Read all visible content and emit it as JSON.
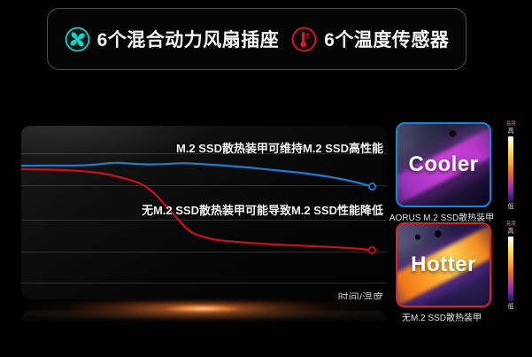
{
  "banner": {
    "items": [
      {
        "icon": "fan-icon",
        "label": "6个混合动力风扇插座",
        "accent": "#17d1c6"
      },
      {
        "icon": "thermometer-icon",
        "label": "6个温度传感器",
        "accent": "#d41e28"
      }
    ]
  },
  "chart_data": {
    "type": "line",
    "title": "",
    "xlabel": "时间/温度",
    "ylabel": "",
    "x_range": [
      0,
      100
    ],
    "y_range": [
      0,
      100
    ],
    "grid": "horizontal-only",
    "legend_position": "inline-annotations",
    "series": [
      {
        "name": "M.2 SSD散热装甲可维持M.2 SSD高性能",
        "color": "#1b7cd0",
        "points": [
          [
            0,
            77
          ],
          [
            8,
            77.2
          ],
          [
            14,
            77
          ],
          [
            20,
            77.5
          ],
          [
            26,
            79
          ],
          [
            31,
            78
          ],
          [
            37,
            77.6
          ],
          [
            44,
            78.6
          ],
          [
            49,
            78
          ],
          [
            55,
            77.2
          ],
          [
            62,
            76
          ],
          [
            70,
            74.3
          ],
          [
            78,
            72.6
          ],
          [
            85,
            70.4
          ],
          [
            91,
            67.9
          ],
          [
            96,
            65
          ]
        ]
      },
      {
        "name": "无M.2 SSD散热装甲可能导致M.2 SSD性能降低",
        "color": "#c8101e",
        "points": [
          [
            0,
            75
          ],
          [
            9,
            74.8
          ],
          [
            17,
            74
          ],
          [
            23,
            72.4
          ],
          [
            28,
            69.9
          ],
          [
            33,
            66.8
          ],
          [
            37,
            60.2
          ],
          [
            40,
            52.6
          ],
          [
            43,
            45.9
          ],
          [
            46,
            38.8
          ],
          [
            50,
            35.7
          ],
          [
            54,
            34
          ],
          [
            60,
            32.9
          ],
          [
            68,
            31.8
          ],
          [
            76,
            31
          ],
          [
            86,
            30.1
          ],
          [
            92,
            29.3
          ],
          [
            96,
            28.4
          ]
        ]
      }
    ]
  },
  "thermal": {
    "cooler": {
      "title": "Cooler",
      "caption": "AORUS M.2 SSD散热装甲",
      "border_color": "#1288dd"
    },
    "hotter": {
      "title": "Hotter",
      "caption": "无M.2 SSD散热装甲",
      "border_color": "#dd2222"
    },
    "scale": {
      "label": "温度",
      "high": "高",
      "low": "低"
    }
  },
  "colors": {
    "background": "#000000",
    "fan_accent": "#17d1c6",
    "thermometer_accent": "#d41e28",
    "line_blue": "#1b7cd0",
    "line_red": "#c8101e",
    "grid": "rgba(255,255,255,0.16)",
    "ember_glow": "#e07030"
  }
}
